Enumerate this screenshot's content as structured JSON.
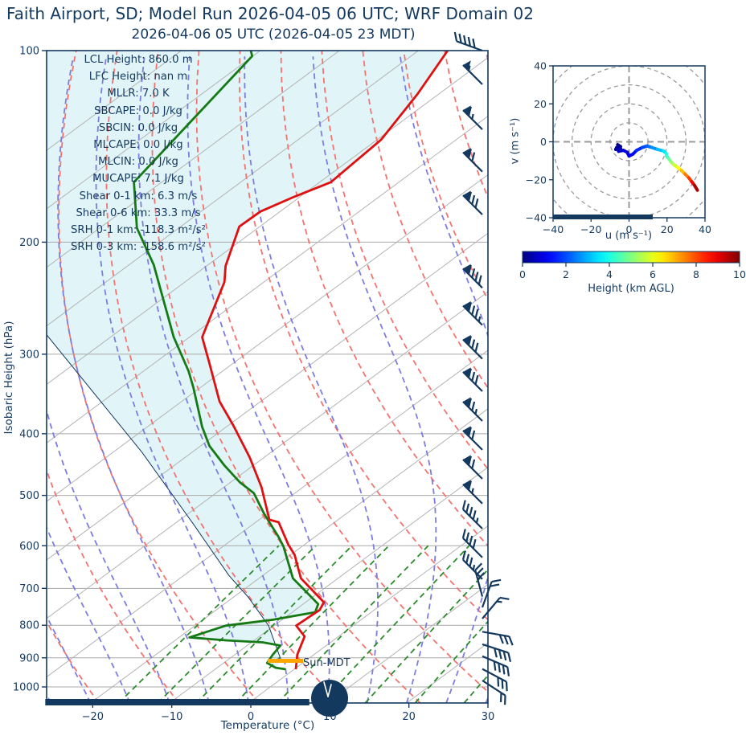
{
  "header": {
    "title": "Faith Airport, SD; Model Run 2026-04-05 06 UTC; WRF Domain 02",
    "subtitle": "2026-04-06 05 UTC  (2026-04-05 23 MDT)"
  },
  "skewt": {
    "xlabel": "Temperature (°C)",
    "ylabel": "Isobaric Height (hPa)",
    "x_ticks": [
      -20,
      -10,
      0,
      10,
      20,
      30
    ],
    "y_ticks": [
      100,
      200,
      300,
      400,
      500,
      600,
      700,
      800,
      900,
      1000
    ],
    "sun_label": "Sun-MDT",
    "stats": [
      "LCL Height: 860.0 m",
      "LFC Height: nan m",
      "MLLR: 7.0 K",
      "SBCAPE: 0.0 J/kg",
      "SBCIN: 0.0 J/kg",
      "MLCAPE: 0.0 J/kg",
      "MLCIN: 0.0 J/kg",
      "MUCAPE: 7.1 J/kg",
      "Shear 0-1 km: 6.3 m/s",
      "Shear 0-6 km: 33.3 m/s",
      "SRH 0-1 km: -118.3 m²/s²",
      "SRH 0-3 km: -158.6 m²/s²"
    ],
    "lcl_bar": {
      "pressure": 910,
      "t_start": -4.8,
      "t_end": -0.3
    },
    "night_bar": {
      "t_start": -26,
      "t_end": 7.4
    },
    "wind_barbs": [
      {
        "p": 100,
        "angle": -70,
        "pennants": 0,
        "fulls": 5,
        "halfs": 0
      },
      {
        "p": 113,
        "angle": -45,
        "pennants": 1,
        "fulls": 0,
        "halfs": 1
      },
      {
        "p": 133,
        "angle": -45,
        "pennants": 1,
        "fulls": 1,
        "halfs": 1
      },
      {
        "p": 155,
        "angle": -45,
        "pennants": 1,
        "fulls": 2,
        "halfs": 0
      },
      {
        "p": 181,
        "angle": -45,
        "pennants": 1,
        "fulls": 3,
        "halfs": 0
      },
      {
        "p": 236,
        "angle": -45,
        "pennants": 1,
        "fulls": 4,
        "halfs": 0
      },
      {
        "p": 270,
        "angle": -45,
        "pennants": 1,
        "fulls": 3,
        "halfs": 1
      },
      {
        "p": 305,
        "angle": -45,
        "pennants": 1,
        "fulls": 3,
        "halfs": 0
      },
      {
        "p": 343,
        "angle": -45,
        "pennants": 1,
        "fulls": 3,
        "halfs": 0
      },
      {
        "p": 382,
        "angle": -45,
        "pennants": 1,
        "fulls": 2,
        "halfs": 1
      },
      {
        "p": 424,
        "angle": -45,
        "pennants": 1,
        "fulls": 2,
        "halfs": 0
      },
      {
        "p": 471,
        "angle": -45,
        "pennants": 1,
        "fulls": 2,
        "halfs": 0
      },
      {
        "p": 515,
        "angle": -45,
        "pennants": 1,
        "fulls": 1,
        "halfs": 1
      },
      {
        "p": 564,
        "angle": -45,
        "pennants": 0,
        "fulls": 4,
        "halfs": 1
      },
      {
        "p": 626,
        "angle": -45,
        "pennants": 0,
        "fulls": 4,
        "halfs": 0
      },
      {
        "p": 677,
        "angle": -45,
        "pennants": 0,
        "fulls": 3,
        "halfs": 1
      },
      {
        "p": 721,
        "angle": -15,
        "pennants": 0,
        "fulls": 3,
        "halfs": 0
      },
      {
        "p": 750,
        "angle": 20,
        "pennants": 0,
        "fulls": 2,
        "halfs": 0
      },
      {
        "p": 781,
        "angle": 40,
        "pennants": 0,
        "fulls": 1,
        "halfs": 1
      },
      {
        "p": 819,
        "angle": 100,
        "pennants": 0,
        "fulls": 3,
        "halfs": 0
      },
      {
        "p": 857,
        "angle": 108,
        "pennants": 0,
        "fulls": 4,
        "halfs": 0
      },
      {
        "p": 895,
        "angle": 113,
        "pennants": 0,
        "fulls": 4,
        "halfs": 0
      },
      {
        "p": 937,
        "angle": 118,
        "pennants": 0,
        "fulls": 3,
        "halfs": 0
      },
      {
        "p": 977,
        "angle": 123,
        "pennants": 0,
        "fulls": 2,
        "halfs": 0
      }
    ]
  },
  "hodo": {
    "xlabel": "u (m s⁻¹)",
    "ylabel": "v (m s⁻¹)",
    "ticks": [
      -40,
      -20,
      0,
      20,
      40
    ],
    "rings": [
      10,
      20,
      30,
      40,
      50
    ],
    "night_bar": {
      "u_start": -40,
      "u_end": 12.5
    }
  },
  "colorbar": {
    "label": "Height (km AGL)",
    "ticks": [
      0,
      2,
      4,
      6,
      8,
      10
    ],
    "range": [
      0,
      10
    ],
    "colormap": "jet"
  },
  "chart_data": [
    {
      "type": "line",
      "name": "skewt-sounding",
      "xlabel": "Temperature (°C)",
      "ylabel": "Isobaric Height (hPa)",
      "x_range": [
        -26,
        30
      ],
      "p_range": [
        100,
        1060
      ],
      "y_scale": "log",
      "series": [
        {
          "name": "temperature",
          "color": "#e01010",
          "points_p_t": [
            [
              100,
              -86.3
            ],
            [
              117,
              -82.7
            ],
            [
              138,
              -79.5
            ],
            [
              161,
              -78.6
            ],
            [
              170,
              -80.8
            ],
            [
              179,
              -82.5
            ],
            [
              189,
              -82.6
            ],
            [
              218,
              -77.6
            ],
            [
              231,
              -75.0
            ],
            [
              282,
              -68.4
            ],
            [
              309,
              -63.2
            ],
            [
              356,
              -55.2
            ],
            [
              388,
              -49.4
            ],
            [
              436,
              -41.8
            ],
            [
              485,
              -35.3
            ],
            [
              546,
              -28.7
            ],
            [
              551,
              -27.1
            ],
            [
              597,
              -22.1
            ],
            [
              620,
              -19.5
            ],
            [
              675,
              -14.7
            ],
            [
              736,
              -7.7
            ],
            [
              757,
              -6.9
            ],
            [
              801,
              -7.2
            ],
            [
              833,
              -4.3
            ],
            [
              890,
              -2.1
            ],
            [
              938,
              0.2
            ]
          ]
        },
        {
          "name": "dewpoint",
          "color": "#157a15",
          "points_p_t": [
            [
              100,
              -111.2
            ],
            [
              102,
              -110.1
            ],
            [
              161,
              -103.5
            ],
            [
              190,
              -95.3
            ],
            [
              217,
              -86.9
            ],
            [
              282,
              -72.0
            ],
            [
              319,
              -64.3
            ],
            [
              339,
              -60.8
            ],
            [
              390,
              -53.1
            ],
            [
              418,
              -48.9
            ],
            [
              449,
              -43.6
            ],
            [
              477,
              -38.8
            ],
            [
              496,
              -35.2
            ],
            [
              535,
              -30.3
            ],
            [
              581,
              -24.6
            ],
            [
              602,
              -22.3
            ],
            [
              675,
              -15.7
            ],
            [
              741,
              -8.1
            ],
            [
              763,
              -7.1
            ],
            [
              784,
              -11.1
            ],
            [
              801,
              -16.1
            ],
            [
              836,
              -18.7
            ],
            [
              845,
              -13.4
            ],
            [
              851,
              -8.6
            ],
            [
              861,
              -5.8
            ],
            [
              890,
              -5.2
            ],
            [
              917,
              -4.5
            ],
            [
              933,
              -2.6
            ],
            [
              938,
              -1.1
            ]
          ]
        },
        {
          "name": "parcel-path",
          "color": "#14395f",
          "points_p_t": [
            [
              277,
              -89.2
            ],
            [
              428,
              -56.3
            ],
            [
              556,
              -37.4
            ],
            [
              668,
              -24.3
            ],
            [
              722,
              -18.2
            ],
            [
              801,
              -10.7
            ],
            [
              911,
              -3.0
            ]
          ]
        }
      ],
      "shade_polygon_p_t": [
        [
          100,
          -200
        ],
        [
          100,
          -86.3
        ],
        [
          117,
          -82.7
        ],
        [
          138,
          -79.5
        ],
        [
          161,
          -78.6
        ],
        [
          170,
          -80.8
        ],
        [
          179,
          -82.5
        ],
        [
          189,
          -82.6
        ],
        [
          218,
          -77.6
        ],
        [
          231,
          -75.0
        ],
        [
          282,
          -68.4
        ],
        [
          309,
          -63.2
        ],
        [
          356,
          -55.2
        ],
        [
          388,
          -49.4
        ],
        [
          436,
          -41.8
        ],
        [
          485,
          -35.3
        ],
        [
          496,
          -35.2
        ],
        [
          535,
          -30.3
        ],
        [
          581,
          -24.6
        ],
        [
          602,
          -22.3
        ],
        [
          675,
          -15.7
        ],
        [
          741,
          -8.1
        ],
        [
          763,
          -7.1
        ],
        [
          784,
          -11.1
        ],
        [
          801,
          -16.1
        ],
        [
          836,
          -18.7
        ],
        [
          845,
          -13.4
        ],
        [
          851,
          -8.6
        ],
        [
          861,
          -5.8
        ],
        [
          890,
          -5.2
        ],
        [
          917,
          -4.5
        ],
        [
          933,
          -2.6
        ],
        [
          911,
          -3.0
        ],
        [
          801,
          -10.7
        ],
        [
          722,
          -18.2
        ],
        [
          668,
          -24.3
        ],
        [
          556,
          -37.4
        ],
        [
          428,
          -56.3
        ],
        [
          277,
          -89.2
        ],
        [
          240,
          -105
        ],
        [
          100,
          -200
        ]
      ]
    },
    {
      "type": "line",
      "name": "hodograph",
      "xlabel": "u (m s⁻¹)",
      "ylabel": "v (m s⁻¹)",
      "x_range": [
        -40,
        40
      ],
      "y_range": [
        -40,
        40
      ],
      "trace_u_v_km": [
        [
          -6,
          -1.5,
          0.0
        ],
        [
          -4.5,
          -2.5,
          0.1
        ],
        [
          -6.5,
          -3,
          0.2
        ],
        [
          -7,
          -4,
          0.3
        ],
        [
          -4.5,
          -3.5,
          0.45
        ],
        [
          -5.5,
          -5,
          0.6
        ],
        [
          -3,
          -4.5,
          0.7
        ],
        [
          -1,
          -5.5,
          0.85
        ],
        [
          0,
          -7.5,
          1.0
        ],
        [
          2,
          -6.5,
          1.2
        ],
        [
          4,
          -4.5,
          1.5
        ],
        [
          7,
          -3,
          1.8
        ],
        [
          9.5,
          -2.2,
          2.1
        ],
        [
          12,
          -3,
          2.5
        ],
        [
          15,
          -4,
          2.9
        ],
        [
          18,
          -4.8,
          3.3
        ],
        [
          19.5,
          -6,
          3.7
        ],
        [
          19.8,
          -7.5,
          4.1
        ],
        [
          21,
          -9,
          4.6
        ],
        [
          22,
          -10.5,
          5.0
        ],
        [
          23.5,
          -12,
          5.5
        ],
        [
          25.5,
          -13.5,
          6.0
        ],
        [
          27.5,
          -15,
          6.6
        ],
        [
          29.5,
          -17,
          7.2
        ],
        [
          31.5,
          -19,
          7.9
        ],
        [
          33,
          -21,
          8.5
        ],
        [
          34.5,
          -23,
          9.2
        ],
        [
          36,
          -25.5,
          10.0
        ]
      ]
    },
    {
      "type": "colorbar",
      "name": "height-colorbar",
      "label": "Height (km AGL)",
      "ticks": [
        0,
        2,
        4,
        6,
        8,
        10
      ],
      "range": [
        0,
        10
      ],
      "colormap": "jet"
    }
  ],
  "colors": {
    "navy": "#14395f",
    "temperature_line": "#e01010",
    "dewpoint_line": "#157a15",
    "dry_adiabat": "#f4736f",
    "moist_adiabat": "#7d7de1",
    "mixing_ratio": "#2a8c2a",
    "isotherm_gray": "#b3b3b3",
    "isobar_gray": "#a8a8a8",
    "shade_fill": "#e1f5f8",
    "lcl_bar": "#ffa500",
    "night_bar": "#14395f"
  }
}
